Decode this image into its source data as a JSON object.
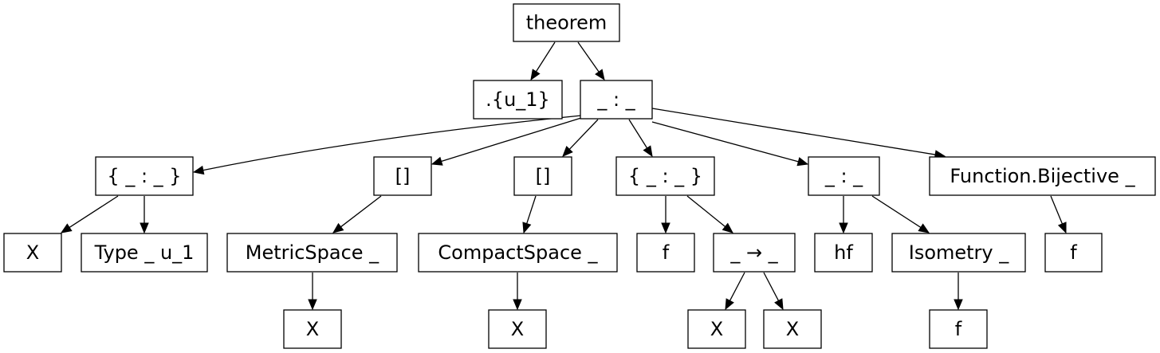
{
  "diagram": {
    "nodes": [
      {
        "id": "n0",
        "label": "theorem"
      },
      {
        "id": "n1",
        "label": ".{u_1}"
      },
      {
        "id": "n2",
        "label": "_ : _"
      },
      {
        "id": "n3",
        "label": "{ _ : _ }"
      },
      {
        "id": "n4",
        "label": "[]"
      },
      {
        "id": "n5",
        "label": "[]"
      },
      {
        "id": "n6",
        "label": "{ _ : _ }"
      },
      {
        "id": "n7",
        "label": "_ : _"
      },
      {
        "id": "n8",
        "label": "Function.Bijective _"
      },
      {
        "id": "n9",
        "label": "X"
      },
      {
        "id": "n10",
        "label": "Type _ u_1"
      },
      {
        "id": "n11",
        "label": "MetricSpace _"
      },
      {
        "id": "n12",
        "label": "CompactSpace _"
      },
      {
        "id": "n13",
        "label": "f"
      },
      {
        "id": "n14",
        "label": "_ → _"
      },
      {
        "id": "n15",
        "label": "hf"
      },
      {
        "id": "n16",
        "label": "Isometry _"
      },
      {
        "id": "n17",
        "label": "f"
      },
      {
        "id": "n18",
        "label": "X"
      },
      {
        "id": "n19",
        "label": "X"
      },
      {
        "id": "n20",
        "label": "X"
      },
      {
        "id": "n21",
        "label": "X"
      },
      {
        "id": "n22",
        "label": "f"
      }
    ],
    "edges": [
      {
        "from": "n0",
        "to": "n1"
      },
      {
        "from": "n0",
        "to": "n2"
      },
      {
        "from": "n2",
        "to": "n3"
      },
      {
        "from": "n2",
        "to": "n4"
      },
      {
        "from": "n2",
        "to": "n5"
      },
      {
        "from": "n2",
        "to": "n6"
      },
      {
        "from": "n2",
        "to": "n7"
      },
      {
        "from": "n2",
        "to": "n8"
      },
      {
        "from": "n3",
        "to": "n9"
      },
      {
        "from": "n3",
        "to": "n10"
      },
      {
        "from": "n4",
        "to": "n11"
      },
      {
        "from": "n5",
        "to": "n12"
      },
      {
        "from": "n6",
        "to": "n13"
      },
      {
        "from": "n6",
        "to": "n14"
      },
      {
        "from": "n7",
        "to": "n15"
      },
      {
        "from": "n7",
        "to": "n16"
      },
      {
        "from": "n8",
        "to": "n17"
      },
      {
        "from": "n11",
        "to": "n18"
      },
      {
        "from": "n12",
        "to": "n19"
      },
      {
        "from": "n14",
        "to": "n20"
      },
      {
        "from": "n14",
        "to": "n21"
      },
      {
        "from": "n16",
        "to": "n22"
      }
    ]
  }
}
